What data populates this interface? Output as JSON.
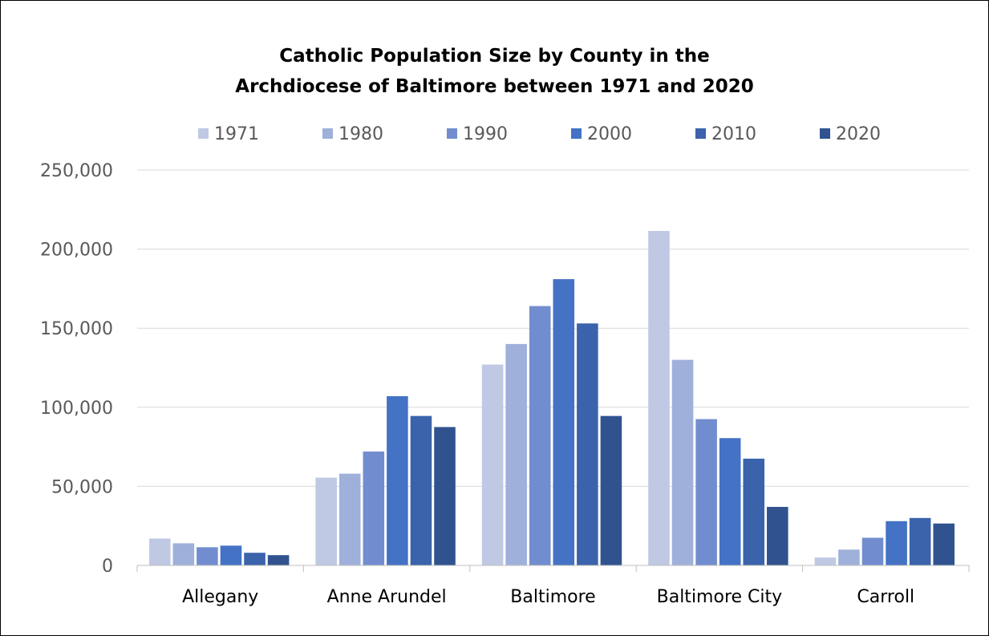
{
  "chart_data": {
    "type": "bar",
    "title_line1": "Catholic Population Size by County in the",
    "title_line2": "Archdiocese of Baltimore between 1971 and 2020",
    "xlabel": "",
    "ylabel": "",
    "categories": [
      "Allegany",
      "Anne Arundel",
      "Baltimore",
      "Baltimore City",
      "Carroll"
    ],
    "ylim": [
      0,
      250000
    ],
    "yticks": [
      {
        "value": 0,
        "label": "0"
      },
      {
        "value": 50000,
        "label": "50,000"
      },
      {
        "value": 100000,
        "label": "100,000"
      },
      {
        "value": 150000,
        "label": "150,000"
      },
      {
        "value": 200000,
        "label": "200,000"
      },
      {
        "value": 250000,
        "label": "250,000"
      }
    ],
    "grid": true,
    "legend_position": "top",
    "series": [
      {
        "name": "1971",
        "color": "#c0c9e4",
        "values": [
          17000,
          55500,
          127000,
          211500,
          5000
        ]
      },
      {
        "name": "1980",
        "color": "#9fb0da",
        "values": [
          14000,
          58000,
          140000,
          130000,
          10000
        ]
      },
      {
        "name": "1990",
        "color": "#728dcf",
        "values": [
          11500,
          72000,
          164000,
          92500,
          17500
        ]
      },
      {
        "name": "2000",
        "color": "#4472c4",
        "values": [
          12500,
          107000,
          181000,
          80500,
          28000
        ]
      },
      {
        "name": "2010",
        "color": "#3a63ab",
        "values": [
          8000,
          94500,
          153000,
          67500,
          30000
        ]
      },
      {
        "name": "2020",
        "color": "#30538f",
        "values": [
          6500,
          87500,
          94500,
          37000,
          26500
        ]
      }
    ]
  }
}
